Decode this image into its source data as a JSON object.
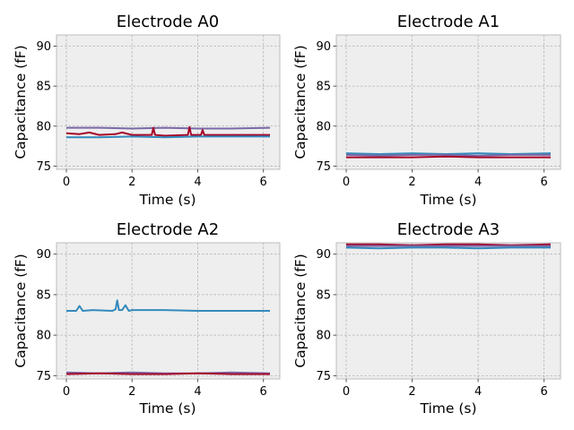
{
  "chart_data": [
    {
      "type": "line",
      "title": "Electrode A0",
      "xlabel": "Time (s)",
      "ylabel": "Capacitance (fF)",
      "xlim": [
        -0.3,
        6.5
      ],
      "ylim": [
        74.6,
        91.4
      ],
      "xticks": [
        0,
        2,
        4,
        6
      ],
      "yticks": [
        75,
        80,
        85,
        90
      ],
      "grid": true,
      "series": [
        {
          "color": "#7a68a6",
          "x": [
            0,
            1,
            2,
            3,
            4,
            5,
            6.2
          ],
          "y": [
            79.8,
            79.8,
            79.7,
            79.8,
            79.7,
            79.7,
            79.8
          ]
        },
        {
          "color": "#a60628",
          "x": [
            0,
            0.4,
            0.7,
            1.0,
            1.5,
            1.7,
            2.0,
            2.6,
            2.65,
            2.7,
            3.0,
            3.7,
            3.75,
            3.8,
            4.1,
            4.15,
            4.2,
            5.0,
            6.2
          ],
          "y": [
            79.1,
            79.0,
            79.2,
            78.9,
            79.0,
            79.2,
            78.9,
            78.9,
            79.8,
            78.9,
            78.8,
            78.9,
            79.9,
            78.9,
            78.9,
            79.5,
            78.9,
            78.9,
            78.9
          ]
        },
        {
          "color": "#348abd",
          "x": [
            0,
            1,
            2,
            3,
            4,
            5,
            6.2
          ],
          "y": [
            78.6,
            78.6,
            78.7,
            78.6,
            78.7,
            78.7,
            78.7
          ]
        }
      ]
    },
    {
      "type": "line",
      "title": "Electrode A1",
      "xlabel": "Time (s)",
      "ylabel": "Capacitance (fF)",
      "xlim": [
        -0.3,
        6.5
      ],
      "ylim": [
        74.6,
        91.4
      ],
      "xticks": [
        0,
        2,
        4,
        6
      ],
      "yticks": [
        75,
        80,
        85,
        90
      ],
      "grid": true,
      "series": [
        {
          "color": "#348abd",
          "x": [
            0,
            1,
            2,
            3,
            4,
            5,
            6.2
          ],
          "y": [
            76.6,
            76.5,
            76.6,
            76.5,
            76.6,
            76.5,
            76.6
          ]
        },
        {
          "color": "#7a68a6",
          "x": [
            0,
            1,
            2,
            3,
            4,
            5,
            6.2
          ],
          "y": [
            76.4,
            76.3,
            76.4,
            76.4,
            76.3,
            76.4,
            76.4
          ]
        },
        {
          "color": "#a60628",
          "x": [
            0,
            1,
            2,
            3,
            4,
            5,
            6.2
          ],
          "y": [
            76.1,
            76.1,
            76.1,
            76.2,
            76.1,
            76.1,
            76.1
          ]
        }
      ]
    },
    {
      "type": "line",
      "title": "Electrode A2",
      "xlabel": "Time (s)",
      "ylabel": "Capacitance (fF)",
      "xlim": [
        -0.3,
        6.5
      ],
      "ylim": [
        74.6,
        91.4
      ],
      "xticks": [
        0,
        2,
        4,
        6
      ],
      "yticks": [
        75,
        80,
        85,
        90
      ],
      "grid": true,
      "series": [
        {
          "color": "#348abd",
          "x": [
            0,
            0.3,
            0.4,
            0.5,
            0.8,
            1.4,
            1.5,
            1.55,
            1.6,
            1.7,
            1.8,
            1.9,
            2.0,
            3.0,
            4.0,
            5.0,
            6.2
          ],
          "y": [
            83.0,
            83.0,
            83.6,
            83.0,
            83.1,
            83.0,
            83.2,
            84.3,
            83.1,
            83.1,
            83.7,
            83.0,
            83.1,
            83.1,
            83.0,
            83.0,
            83.0
          ]
        },
        {
          "color": "#7a68a6",
          "x": [
            0,
            1,
            2,
            3,
            4,
            5,
            6.2
          ],
          "y": [
            75.4,
            75.3,
            75.4,
            75.3,
            75.3,
            75.4,
            75.3
          ]
        },
        {
          "color": "#a60628",
          "x": [
            0,
            1,
            2,
            3,
            4,
            5,
            6.2
          ],
          "y": [
            75.2,
            75.3,
            75.2,
            75.2,
            75.3,
            75.2,
            75.2
          ]
        }
      ]
    },
    {
      "type": "line",
      "title": "Electrode A3",
      "xlabel": "Time (s)",
      "ylabel": "Capacitance (fF)",
      "xlim": [
        -0.3,
        6.5
      ],
      "ylim": [
        74.6,
        91.4
      ],
      "xticks": [
        0,
        2,
        4,
        6
      ],
      "yticks": [
        75,
        80,
        85,
        90
      ],
      "grid": true,
      "series": [
        {
          "color": "#a60628",
          "x": [
            0,
            1,
            2,
            3,
            4,
            5,
            6.2
          ],
          "y": [
            91.2,
            91.2,
            91.1,
            91.2,
            91.2,
            91.1,
            91.2
          ]
        },
        {
          "color": "#7a68a6",
          "x": [
            0,
            1,
            2,
            3,
            4,
            5,
            6.2
          ],
          "y": [
            91.0,
            91.0,
            91.0,
            91.0,
            91.0,
            91.0,
            91.0
          ]
        },
        {
          "color": "#348abd",
          "x": [
            0,
            1,
            2,
            3,
            4,
            5,
            6.2
          ],
          "y": [
            90.8,
            90.7,
            90.8,
            90.8,
            90.7,
            90.8,
            90.8
          ]
        }
      ]
    }
  ]
}
